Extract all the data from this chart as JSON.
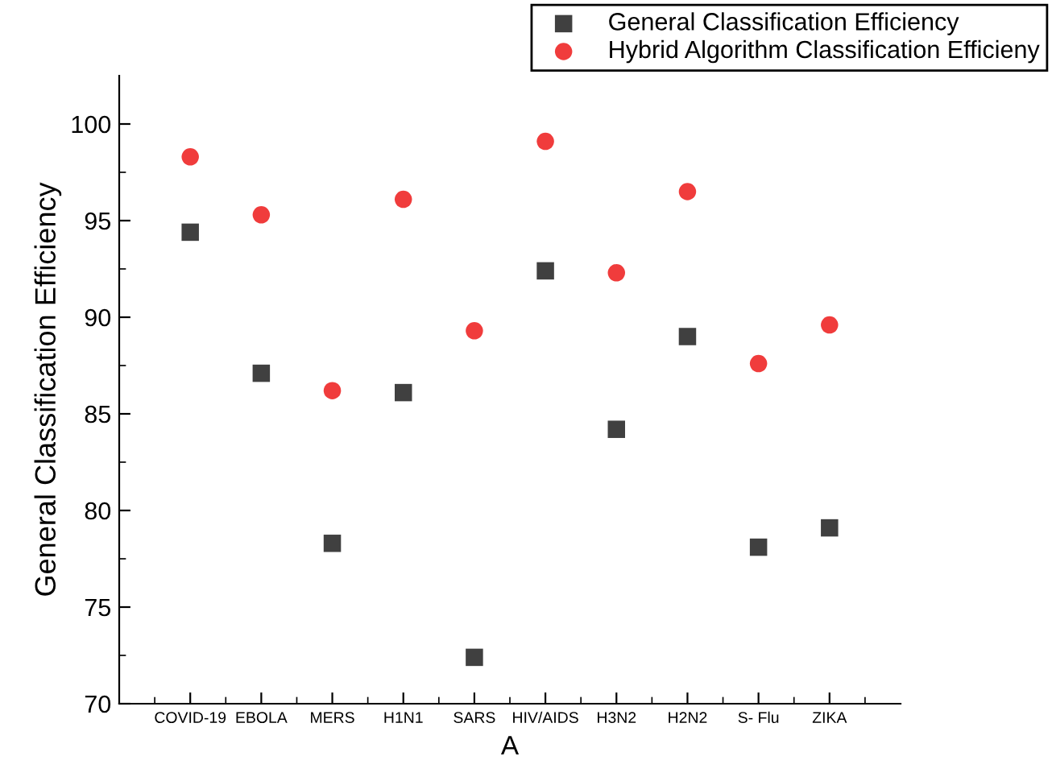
{
  "chart_data": {
    "type": "scatter",
    "xlabel": "A",
    "ylabel": "General Classification Efficiency",
    "categories": [
      "COVID-19",
      "EBOLA",
      "MERS",
      "H1N1",
      "SARS",
      "HIV/AIDS",
      "H3N2",
      "H2N2",
      "S- Flu",
      "ZIKA"
    ],
    "series": [
      {
        "name": "General Classification Efficiency",
        "color": "#404040",
        "marker": "square",
        "values": [
          94.4,
          87.1,
          78.3,
          86.1,
          72.4,
          92.4,
          84.2,
          89.0,
          78.1,
          79.1
        ]
      },
      {
        "name": "Hybrid Algorithm Classification Efficieny",
        "color": "#f03c3c",
        "marker": "circle",
        "values": [
          98.3,
          95.3,
          86.2,
          96.1,
          89.3,
          99.1,
          92.3,
          96.5,
          87.6,
          89.6
        ]
      }
    ],
    "ylim": [
      70,
      102.5
    ],
    "yticks": [
      70,
      {
        "value": 72.5,
        "label": null
      },
      75,
      {
        "value": 77.5,
        "label": null
      },
      80,
      {
        "value": 82.5,
        "label": null
      },
      85,
      {
        "value": 87.5,
        "label": null
      },
      90,
      {
        "value": 92.5,
        "label": null
      },
      95,
      {
        "value": 97.5,
        "label": null
      },
      100
    ],
    "grid": false,
    "legend": "top right"
  }
}
